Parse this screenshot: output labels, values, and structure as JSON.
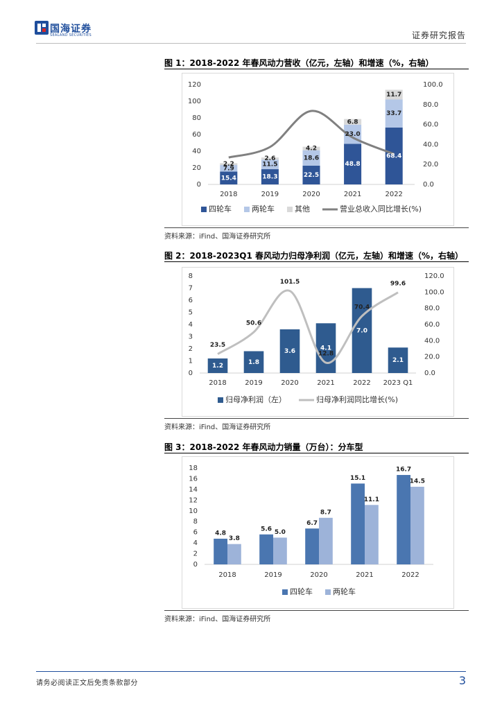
{
  "header": {
    "logo_text": "国海证券",
    "logo_subtitle": "SEALAND SECURITIES",
    "report_type": "证券研究报告"
  },
  "chart_data": [
    {
      "type": "bar",
      "stacked": true,
      "title": "图 1：2018-2022 年春风动力营收（亿元，左轴）和增速（%，右轴）",
      "categories": [
        "2018",
        "2019",
        "2020",
        "2021",
        "2022"
      ],
      "series": [
        {
          "name": "四轮车",
          "color": "#2f5597",
          "label_color": "#ffffff",
          "label_position": "center",
          "values": [
            15.4,
            18.3,
            22.5,
            48.8,
            68.4
          ],
          "value_labels": [
            "15.4",
            "18.3",
            "22.5",
            "48.8",
            "68.4"
          ]
        },
        {
          "name": "两轮车",
          "color": "#b4c7e7",
          "label_color": "#222222",
          "label_position": "center",
          "values": [
            7.9,
            11.5,
            18.6,
            23.0,
            33.7
          ],
          "value_labels": [
            "7.9",
            "11.5",
            "18.6",
            "23.0",
            "33.7"
          ]
        },
        {
          "name": "其他",
          "color": "#d9d9d9",
          "label_color": "#222222",
          "label_position": "center",
          "values": [
            2.2,
            2.6,
            4.2,
            6.8,
            11.7
          ],
          "value_labels": [
            "2.2",
            "2.6",
            "4.2",
            "6.8",
            "11.7"
          ]
        },
        {
          "name": "营业总收入同比增长(%)",
          "type": "line",
          "axis": "y2",
          "color": "#808080",
          "values": [
            27,
            37.5,
            73.6,
            47,
            30.5
          ]
        }
      ],
      "ylim": [
        0,
        120
      ],
      "yticks": [
        0,
        20,
        40,
        60,
        80,
        100,
        120
      ],
      "y2lim": [
        0,
        100
      ],
      "y2ticks": [
        {
          "value": 0,
          "label": "0.0"
        },
        {
          "value": 20,
          "label": "20.0"
        },
        {
          "value": 40,
          "label": "40.0"
        },
        {
          "value": 60,
          "label": "60.0"
        },
        {
          "value": 80,
          "label": "80.0"
        },
        {
          "value": 100,
          "label": "100.0"
        }
      ],
      "legend": "bottom",
      "source": "资料来源：iFind、国海证券研究所"
    },
    {
      "type": "bar",
      "stacked": false,
      "title": "图 2：2018-2023Q1 春风动力归母净利润（亿元，左轴）和增速（%，右轴）",
      "categories": [
        "2018",
        "2019",
        "2020",
        "2021",
        "2022",
        "2023 Q1"
      ],
      "series": [
        {
          "name": "归母净利润（左）",
          "color": "#2f5b8f",
          "label_color": "#ffffff",
          "label_position": "center",
          "values": [
            1.2,
            1.8,
            3.6,
            4.1,
            7.0,
            2.1
          ],
          "value_labels": [
            "1.2",
            "1.8",
            "3.6",
            "4.1",
            "7.0",
            "2.1"
          ]
        },
        {
          "name": "归母净利润同比增长(%)",
          "type": "line",
          "axis": "y2",
          "color": "#bfbfbf",
          "label_color": "#222222",
          "label_position": "above",
          "values": [
            23.5,
            50.6,
            101.5,
            12.8,
            70.4,
            99.6
          ],
          "value_labels": [
            "23.5",
            "50.6",
            "101.5",
            "12.8",
            "70.4",
            "99.6"
          ]
        }
      ],
      "ylim": [
        0,
        8
      ],
      "yticks": [
        0,
        1,
        2,
        3,
        4,
        5,
        6,
        7,
        8
      ],
      "y2lim": [
        0,
        120
      ],
      "y2ticks": [
        {
          "value": 0,
          "label": "0.0"
        },
        {
          "value": 20,
          "label": "20.0"
        },
        {
          "value": 40,
          "label": "40.0"
        },
        {
          "value": 60,
          "label": "60.0"
        },
        {
          "value": 80,
          "label": "80.0"
        },
        {
          "value": 100,
          "label": "100.0"
        },
        {
          "value": 120,
          "label": "120.0"
        }
      ],
      "legend": "bottom",
      "source": "资料来源：iFind、国海证券研究所"
    },
    {
      "type": "bar",
      "stacked": false,
      "title": "图 3：2018-2022 年春风动力销量（万台）：分车型",
      "categories": [
        "2018",
        "2019",
        "2020",
        "2021",
        "2022"
      ],
      "series": [
        {
          "name": "四轮车",
          "color": "#4a76b0",
          "label_color": "#222222",
          "label_position": "above",
          "values": [
            4.8,
            5.6,
            6.7,
            15.1,
            16.7
          ],
          "value_labels": [
            "4.8",
            "5.6",
            "6.7",
            "15.1",
            "16.7"
          ]
        },
        {
          "name": "两轮车",
          "color": "#9db3d9",
          "label_color": "#222222",
          "label_position": "above",
          "values": [
            3.8,
            5.0,
            8.7,
            11.1,
            14.5
          ],
          "value_labels": [
            "3.8",
            "5.0",
            "8.7",
            "11.1",
            "14.5"
          ]
        }
      ],
      "ylim": [
        0,
        18
      ],
      "yticks": [
        0,
        2,
        4,
        6,
        8,
        10,
        12,
        14,
        16,
        18
      ],
      "legend": "bottom",
      "source": "资料来源：iFind、国海证券研究所"
    }
  ],
  "footer": {
    "disclaimer": "请务必阅读正文后免责条款部分",
    "page_number": 3
  }
}
